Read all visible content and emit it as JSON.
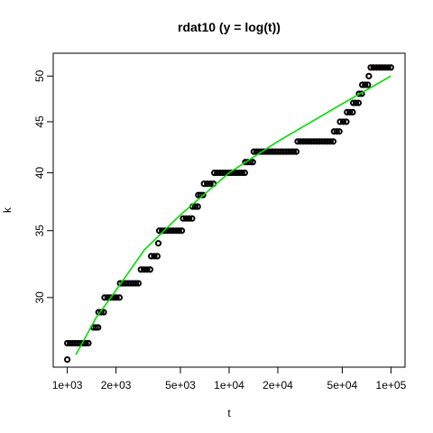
{
  "chart_data": {
    "type": "scatter",
    "title": "rdat10 (y = log(t))",
    "xlabel": "t",
    "ylabel": "k",
    "x_scale": "log",
    "y_scale": "log",
    "xlim": [
      1000,
      100000
    ],
    "ylim": [
      26.3,
      51.2
    ],
    "x_ticks": [
      {
        "value": 1000,
        "label": "1e+03"
      },
      {
        "value": 2000,
        "label": "2e+03"
      },
      {
        "value": 5000,
        "label": "5e+03"
      },
      {
        "value": 10000,
        "label": "1e+04"
      },
      {
        "value": 20000,
        "label": "2e+04"
      },
      {
        "value": 50000,
        "label": "5e+04"
      },
      {
        "value": 100000,
        "label": "1e+05"
      }
    ],
    "y_ticks": [
      {
        "value": 30,
        "label": "30"
      },
      {
        "value": 35,
        "label": "35"
      },
      {
        "value": 40,
        "label": "40"
      },
      {
        "value": 45,
        "label": "45"
      },
      {
        "value": 50,
        "label": "50"
      }
    ],
    "grid": false,
    "series": [
      {
        "kind": "points",
        "color": "#000000",
        "note_levels": "each step is a horizontal run of dense open circles at level k spanning t from x_start to x_end",
        "steps": [
          {
            "k": 26,
            "x_start": 1000,
            "x_end": 1000
          },
          {
            "k": 27,
            "x_start": 1000,
            "x_end": 1350
          },
          {
            "k": 28,
            "x_start": 1450,
            "x_end": 1550
          },
          {
            "k": 29,
            "x_start": 1560,
            "x_end": 1680
          },
          {
            "k": 30,
            "x_start": 1700,
            "x_end": 2100
          },
          {
            "k": 31,
            "x_start": 2120,
            "x_end": 2750
          },
          {
            "k": 32,
            "x_start": 2850,
            "x_end": 3250
          },
          {
            "k": 33,
            "x_start": 3300,
            "x_end": 3600
          },
          {
            "k": 34,
            "x_start": 3650,
            "x_end": 3650
          },
          {
            "k": 35,
            "x_start": 3700,
            "x_end": 5100
          },
          {
            "k": 36,
            "x_start": 5200,
            "x_end": 5900
          },
          {
            "k": 37,
            "x_start": 5950,
            "x_end": 6400
          },
          {
            "k": 38,
            "x_start": 6450,
            "x_end": 6900
          },
          {
            "k": 39,
            "x_start": 7000,
            "x_end": 8000
          },
          {
            "k": 40,
            "x_start": 8100,
            "x_end": 12500
          },
          {
            "k": 41,
            "x_start": 12600,
            "x_end": 14000
          },
          {
            "k": 42,
            "x_start": 14200,
            "x_end": 26000
          },
          {
            "k": 43,
            "x_start": 26500,
            "x_end": 44000
          },
          {
            "k": 44,
            "x_start": 44500,
            "x_end": 48000
          },
          {
            "k": 45,
            "x_start": 48500,
            "x_end": 53000
          },
          {
            "k": 46,
            "x_start": 53500,
            "x_end": 58000
          },
          {
            "k": 47,
            "x_start": 58500,
            "x_end": 63000
          },
          {
            "k": 48,
            "x_start": 63500,
            "x_end": 66000
          },
          {
            "k": 49,
            "x_start": 66500,
            "x_end": 72000
          },
          {
            "k": 50,
            "x_start": 73000,
            "x_end": 73000
          },
          {
            "k": 51,
            "x_start": 75000,
            "x_end": 100000
          }
        ]
      },
      {
        "kind": "line",
        "color": "#00dd00",
        "points": [
          {
            "x": 1130,
            "y": 26.3
          },
          {
            "x": 1300,
            "y": 27.4
          },
          {
            "x": 1500,
            "y": 28.6
          },
          {
            "x": 2000,
            "y": 30.5
          },
          {
            "x": 3000,
            "y": 33.5
          },
          {
            "x": 5000,
            "y": 36.3
          },
          {
            "x": 10000,
            "y": 40.0
          },
          {
            "x": 20000,
            "y": 43.0
          },
          {
            "x": 50000,
            "y": 46.9
          },
          {
            "x": 100000,
            "y": 50.0
          }
        ]
      }
    ]
  }
}
